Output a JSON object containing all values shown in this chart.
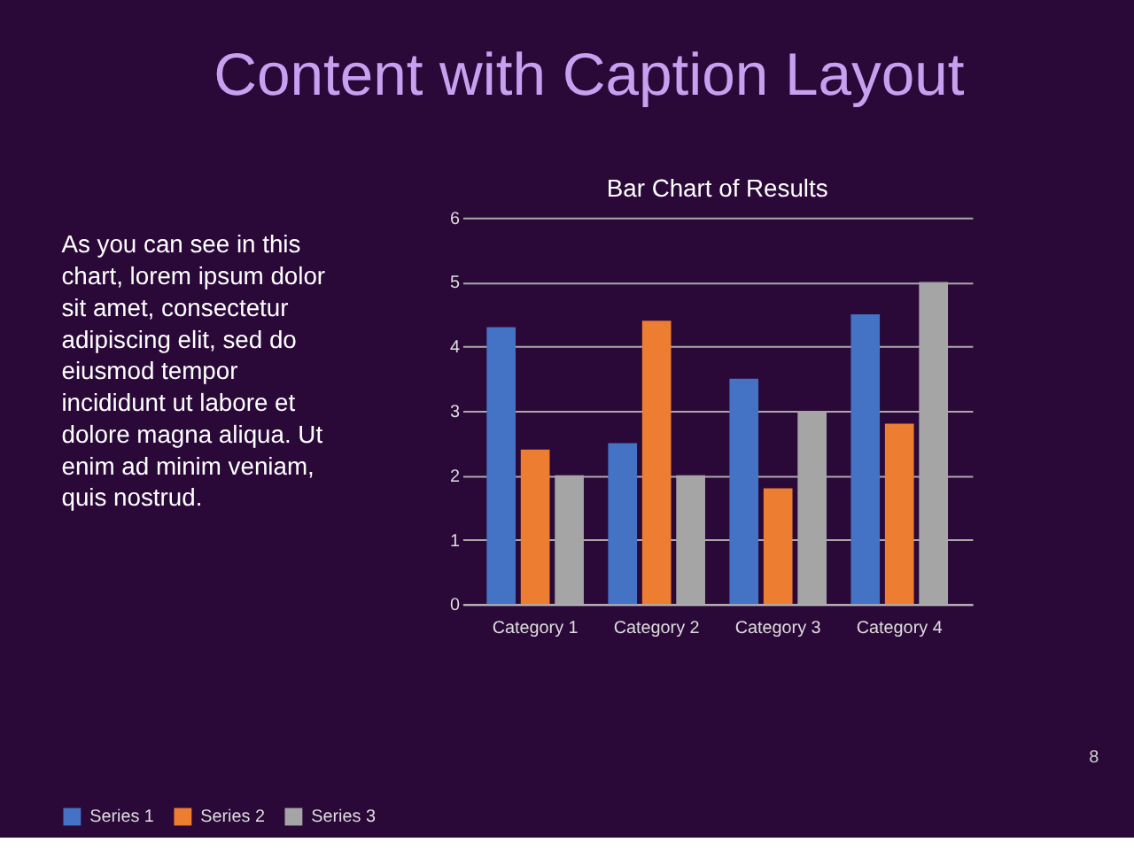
{
  "chart_data": {
    "type": "bar",
    "title": "Content with Caption Layout",
    "subtitle": "Bar Chart of Results",
    "categories": [
      "Category 1",
      "Category 2",
      "Category 3",
      "Category 4"
    ],
    "series": [
      {
        "name": "Series 1",
        "color": "#4472c4",
        "values": [
          4.3,
          2.5,
          3.5,
          4.5
        ]
      },
      {
        "name": "Series 2",
        "color": "#ed7d31",
        "values": [
          2.4,
          4.4,
          1.8,
          2.8
        ]
      },
      {
        "name": "Series 3",
        "color": "#a5a5a5",
        "values": [
          2,
          2,
          3,
          5
        ]
      }
    ],
    "ylim": [
      0,
      6
    ],
    "yticks": [
      0,
      1,
      2,
      3,
      4,
      5,
      6
    ],
    "grid": "y",
    "legend": "bottom",
    "annotations": [
      "As you can see in this chart, lorem ipsum dolor sit amet, consectetur adipiscing elit, sed do eiusmod tempor incididunt ut labore et dolore magna aliqua. Ut enim ad minim veniam, quis nostrud.",
      "8"
    ]
  }
}
